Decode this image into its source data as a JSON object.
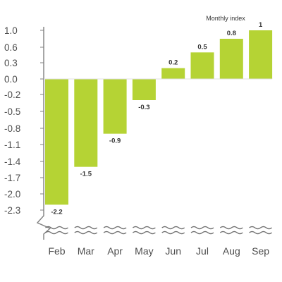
{
  "chart_data": {
    "type": "bar",
    "title": "Monthly index",
    "categories": [
      "Feb",
      "Mar",
      "Apr",
      "May",
      "Jun",
      "Jul",
      "Aug",
      "Sep"
    ],
    "values": [
      -2.2,
      -1.5,
      -0.9,
      -0.3,
      0.2,
      0.5,
      0.8,
      1
    ],
    "data_labels": [
      "-2.2",
      "-1.5",
      "-0.9",
      "-0.3",
      "0.2",
      "0.5",
      "0.8",
      "1"
    ],
    "y_ticks": [
      1.0,
      0.6,
      0.3,
      0.0,
      -0.2,
      -0.5,
      -0.8,
      -1.1,
      -1.4,
      -1.7,
      -2.0,
      -2.3
    ],
    "y_tick_labels": [
      "1.0",
      "0.6",
      "0.3",
      "0.0",
      "-0.2",
      "-0.5",
      "-0.8",
      "-1.1",
      "-1.4",
      "-1.7",
      "-2.0",
      "-2.3"
    ],
    "ylim": [
      -2.3,
      1.0
    ],
    "axis_break": true,
    "grid": false,
    "legend": "top-right",
    "colors": {
      "bar": "#b5d334",
      "axis": "#808080",
      "text": "#4d4d4d"
    }
  }
}
